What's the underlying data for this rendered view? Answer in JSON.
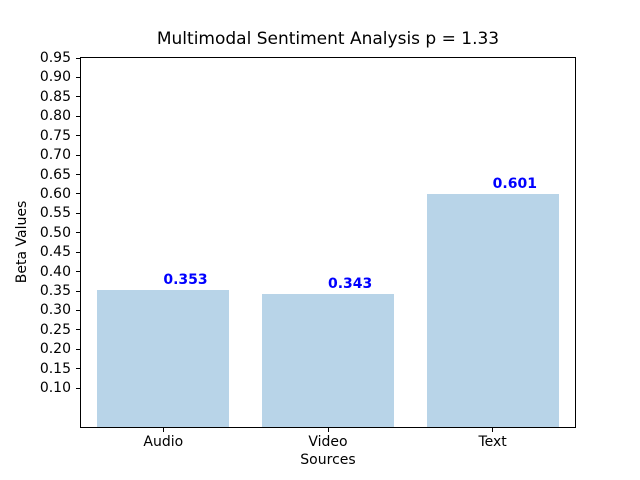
{
  "figure": {
    "background": "#ffffff"
  },
  "chart_data": {
    "type": "bar",
    "title": "Multimodal Sentiment Analysis p = 1.33",
    "xlabel": "Sources",
    "ylabel": "Beta Values",
    "categories": [
      "Audio",
      "Video",
      "Text"
    ],
    "values": [
      0.353,
      0.343,
      0.601
    ],
    "value_labels": [
      "0.353",
      "0.343",
      "0.601"
    ],
    "ylim": [
      0,
      0.95
    ],
    "yticks": [
      0.1,
      0.15,
      0.2,
      0.25,
      0.3,
      0.35,
      0.4,
      0.45,
      0.5,
      0.55,
      0.6,
      0.65,
      0.7,
      0.75,
      0.8,
      0.85,
      0.9,
      0.95
    ],
    "ytick_labels": [
      "0.10",
      "0.15",
      "0.20",
      "0.25",
      "0.30",
      "0.35",
      "0.40",
      "0.45",
      "0.50",
      "0.55",
      "0.60",
      "0.65",
      "0.70",
      "0.75",
      "0.80",
      "0.85",
      "0.90",
      "0.95"
    ],
    "bar_width_fraction": 0.8,
    "grid": false,
    "legend": "none",
    "colors": {
      "bar_fill": "#b8d4e8",
      "value_label": "#0000ff",
      "axis": "#000000",
      "text": "#000000"
    }
  }
}
